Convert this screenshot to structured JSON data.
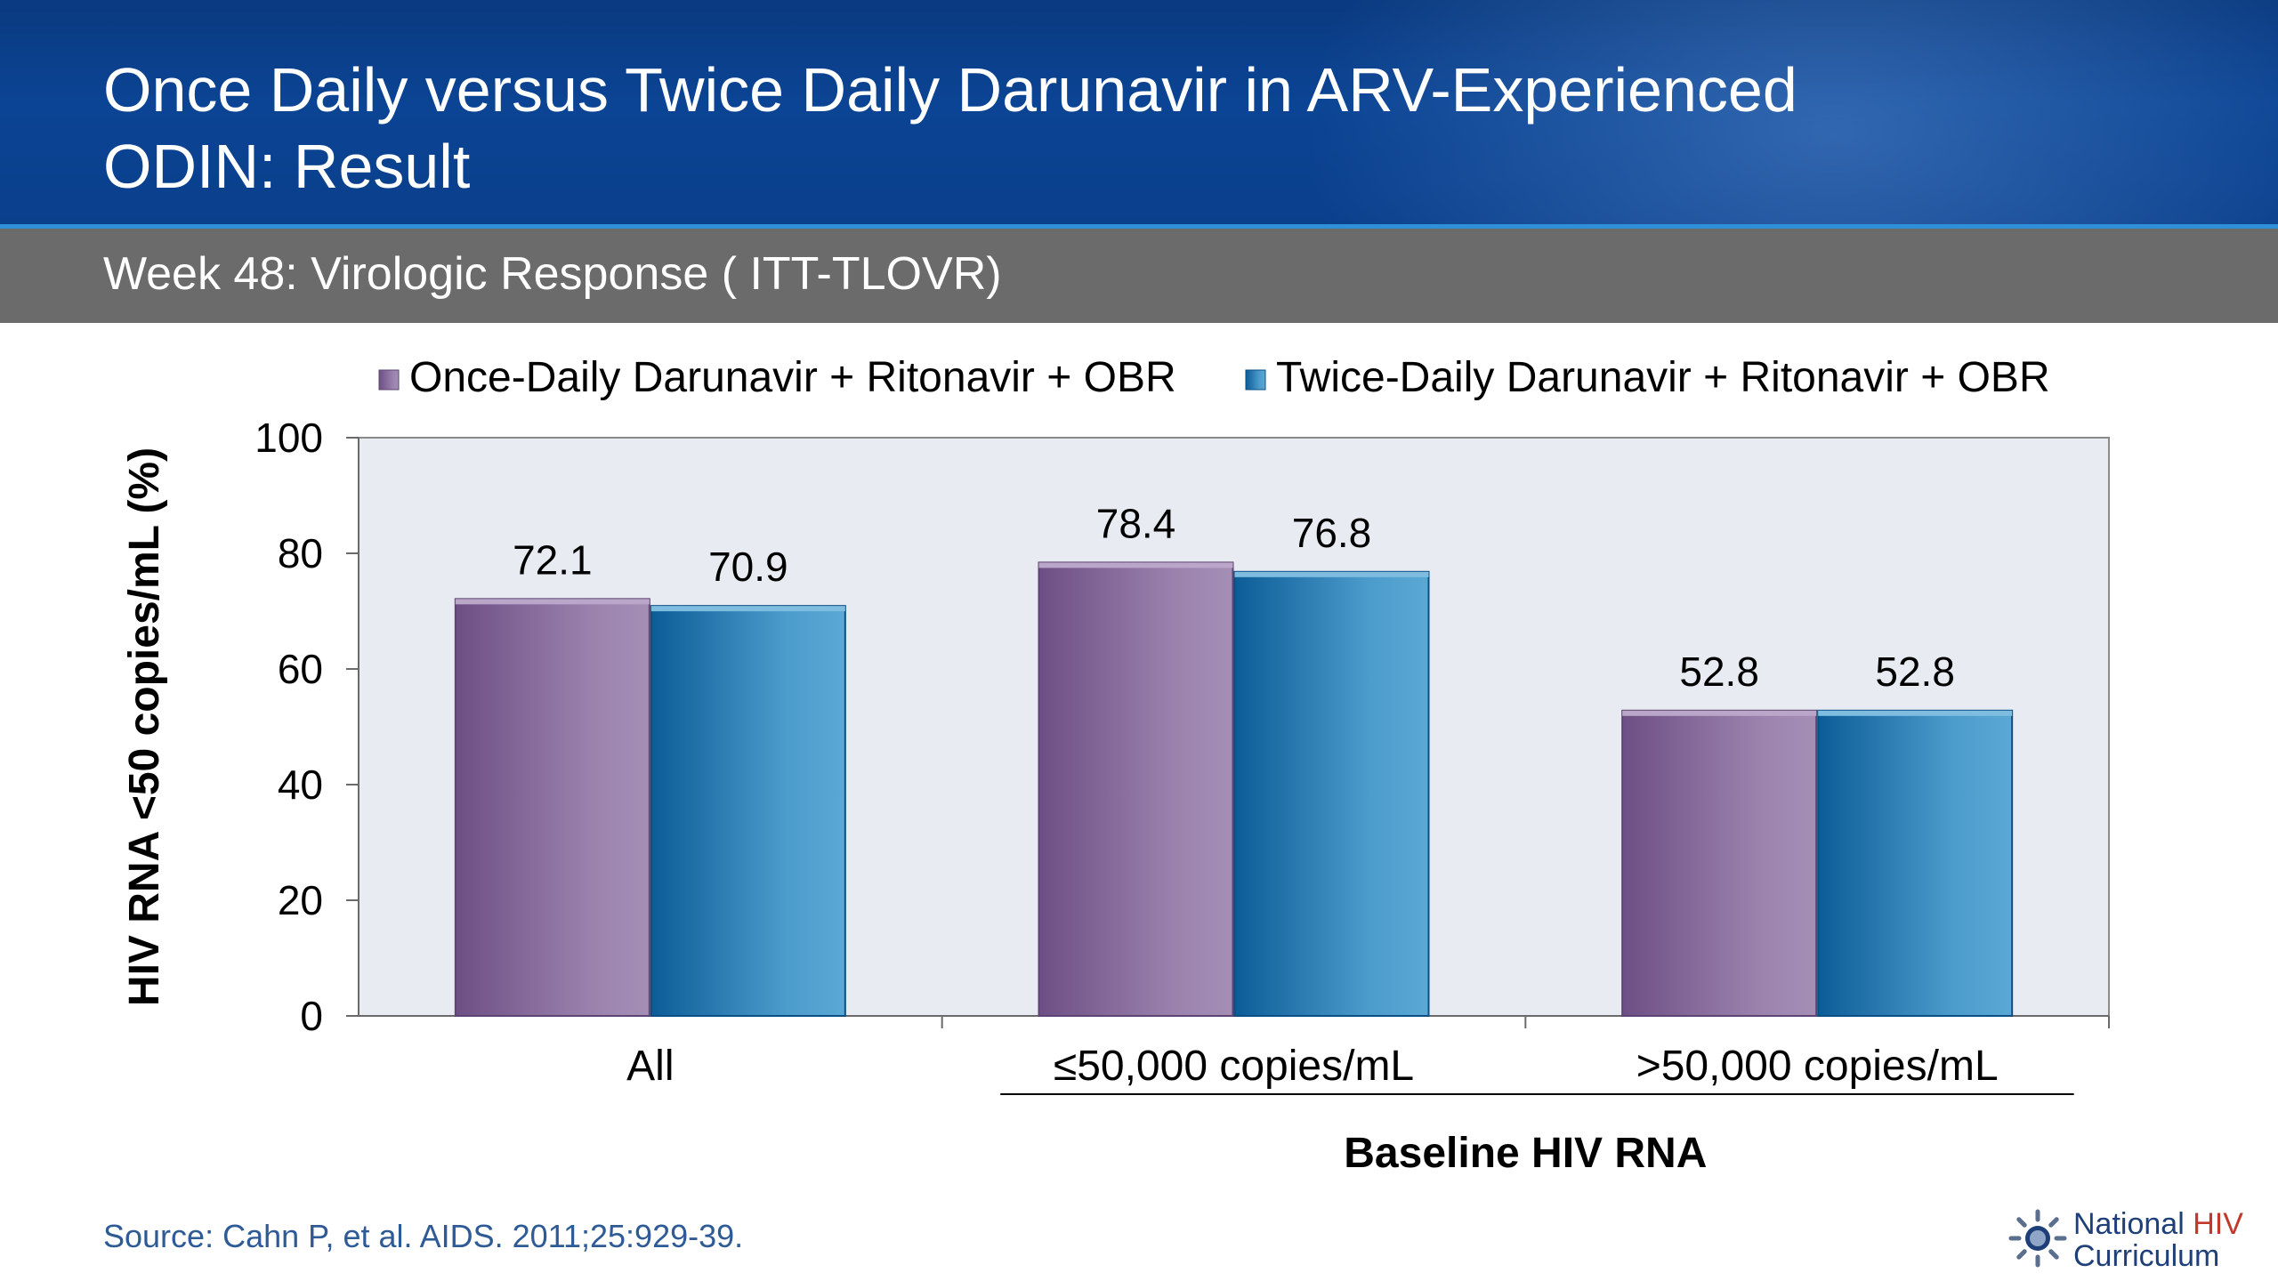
{
  "header": {
    "title_line1": "Once Daily versus Twice Daily Darunavir in ARV-Experienced",
    "title_line2": "ODIN: Result"
  },
  "subheader": {
    "subtitle": "Week 48: Virologic Response ( ITT-TLOVR)"
  },
  "chart_data": {
    "type": "bar",
    "categories": [
      "All",
      "≤50,000 copies/mL",
      ">50,000 copies/mL"
    ],
    "series": [
      {
        "name": "Once-Daily Darunavir + Ritonavir + OBR",
        "values": [
          72.1,
          78.4,
          52.8
        ],
        "labels": [
          "72.1",
          "78.4",
          "52.8"
        ],
        "color": "#8a6a9e"
      },
      {
        "name": "Twice-Daily Darunavir + Ritonavir + OBR",
        "values": [
          70.9,
          76.8,
          52.8
        ],
        "labels": [
          "70.9",
          "76.8",
          "52.8"
        ],
        "color": "#2a7fb5"
      }
    ],
    "ylabel": "HIV RNA <50 copies/mL (%)",
    "xlabel": "",
    "group_label": "Baseline HIV RNA",
    "ylim": [
      0,
      100
    ],
    "yticks": [
      "0",
      "20",
      "40",
      "60",
      "80",
      "100"
    ],
    "legend_position": "top",
    "plot_background": "#e8ebf2",
    "grid": false
  },
  "footer": {
    "source": "Source: Cahn P, et al. AIDS. 2011;25:929-39.",
    "logo_line1_a": "National ",
    "logo_line1_b": "HIV",
    "logo_line2": "Curriculum",
    "logo_icon": "gear-sun-icon"
  }
}
